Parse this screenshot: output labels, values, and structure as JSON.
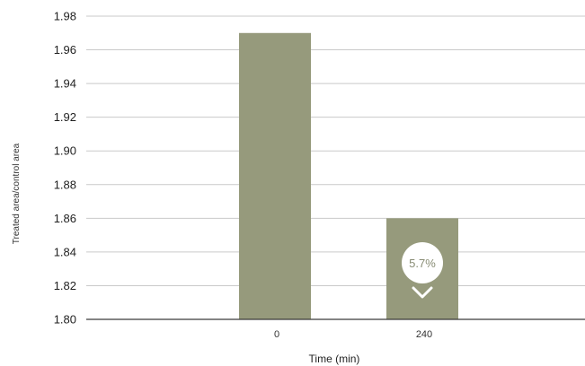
{
  "chart_data": {
    "type": "bar",
    "title": "",
    "xlabel": "Time (min)",
    "ylabel": "Treated area/control area",
    "categories": [
      "0",
      "240"
    ],
    "values": [
      1.97,
      1.86
    ],
    "ylim": [
      1.8,
      1.98
    ],
    "yticks": [
      "1.80",
      "1.82",
      "1.84",
      "1.86",
      "1.88",
      "1.90",
      "1.92",
      "1.94",
      "1.96",
      "1.98"
    ],
    "grid": true,
    "bar_color": "#969a7c",
    "annotation": {
      "text": "5.7%",
      "category": "240",
      "direction": "down"
    }
  }
}
